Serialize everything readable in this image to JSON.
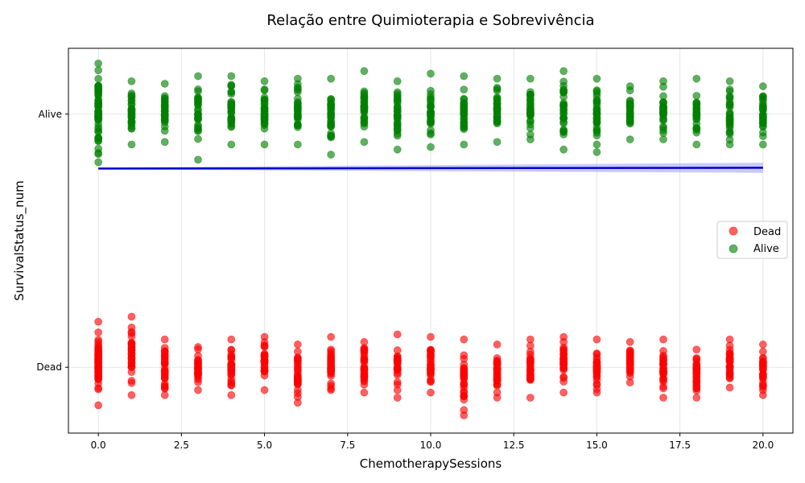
{
  "chart_data": {
    "type": "scatter",
    "title": "Relação entre Quimioterapia e Sobrevivência",
    "xlabel": "ChemotherapySessions",
    "ylabel": "SurvivalStatus_num",
    "xlim": [
      -0.9,
      20.9
    ],
    "ylim": [
      -0.26,
      1.26
    ],
    "x_ticks": [
      0.0,
      2.5,
      5.0,
      7.5,
      10.0,
      12.5,
      15.0,
      17.5,
      20.0
    ],
    "x_tick_labels": [
      "0.0",
      "2.5",
      "5.0",
      "7.5",
      "10.0",
      "12.5",
      "15.0",
      "17.5",
      "20.0"
    ],
    "y_ticks": [
      0,
      1
    ],
    "y_tick_labels": [
      "Dead",
      "Alive"
    ],
    "grid": true,
    "legend_position": "center-right",
    "series": [
      {
        "name": "Dead",
        "color": "#ff0000",
        "y_value": 0,
        "x": [
          0,
          1,
          2,
          3,
          4,
          5,
          6,
          7,
          8,
          9,
          10,
          11,
          12,
          13,
          14,
          15,
          16,
          17,
          18,
          19,
          20
        ],
        "y_min": [
          -0.15,
          -0.11,
          -0.11,
          -0.09,
          -0.11,
          -0.09,
          -0.14,
          -0.09,
          -0.1,
          -0.12,
          -0.1,
          -0.19,
          -0.12,
          -0.12,
          -0.1,
          -0.1,
          -0.06,
          -0.12,
          -0.12,
          -0.08,
          -0.11
        ],
        "y_max": [
          0.18,
          0.2,
          0.11,
          0.08,
          0.11,
          0.12,
          0.09,
          0.12,
          0.1,
          0.13,
          0.12,
          0.11,
          0.09,
          0.11,
          0.12,
          0.11,
          0.1,
          0.11,
          0.07,
          0.11,
          0.09
        ]
      },
      {
        "name": "Alive",
        "color": "#008000",
        "y_value": 1,
        "x": [
          0,
          1,
          2,
          3,
          4,
          5,
          6,
          7,
          8,
          9,
          10,
          11,
          12,
          13,
          14,
          15,
          16,
          17,
          18,
          19,
          20
        ],
        "y_min": [
          0.81,
          0.88,
          0.89,
          0.82,
          0.88,
          0.88,
          0.88,
          0.84,
          0.89,
          0.86,
          0.87,
          0.88,
          0.89,
          0.9,
          0.86,
          0.85,
          0.9,
          0.9,
          0.88,
          0.88,
          0.88
        ],
        "y_max": [
          1.2,
          1.13,
          1.12,
          1.15,
          1.15,
          1.13,
          1.14,
          1.14,
          1.17,
          1.13,
          1.16,
          1.15,
          1.14,
          1.14,
          1.17,
          1.14,
          1.11,
          1.13,
          1.14,
          1.13,
          1.11
        ]
      }
    ],
    "regression": {
      "color": "#0000cc",
      "ci_color": "#6666ff",
      "x_start": 0,
      "x_end": 20,
      "y_start": 0.785,
      "y_end": 0.788,
      "ci_start": 0.004,
      "ci_end": 0.02
    }
  }
}
